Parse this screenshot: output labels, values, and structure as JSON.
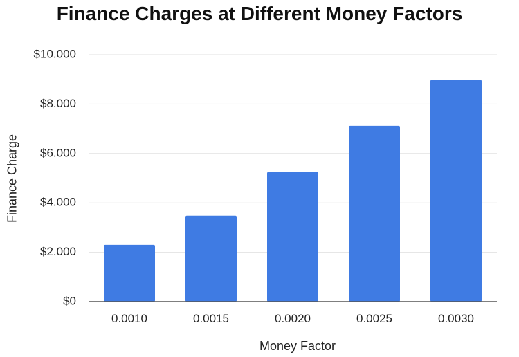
{
  "chart_data": {
    "type": "bar",
    "title": "Finance Charges at Different Money Factors",
    "xlabel": "Money Factor",
    "ylabel": "Finance Charge",
    "categories": [
      "0.0010",
      "0.0015",
      "0.0020",
      "0.0025",
      "0.0030"
    ],
    "values": [
      2300,
      3480,
      5250,
      7120,
      8980
    ],
    "ylim": [
      0,
      10000
    ],
    "yticks": [
      0,
      2000,
      4000,
      6000,
      8000,
      10000
    ],
    "ytick_labels": [
      "$0",
      "$2.000",
      "$4.000",
      "$6.000",
      "$8.000",
      "$10.000"
    ],
    "bar_color": "#3f7be3",
    "grid": true,
    "legend": "none"
  }
}
